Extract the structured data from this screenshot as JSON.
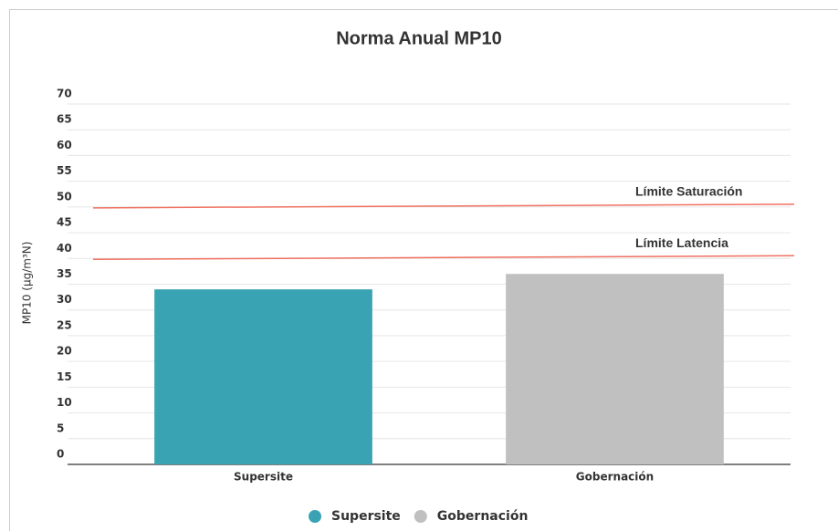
{
  "chart_data": {
    "type": "bar",
    "title": "Norma Anual MP10",
    "y_label": "MP10 (µg/m³N)",
    "categories": [
      "Supersite",
      "Gobernación"
    ],
    "series": [
      {
        "name": "Supersite",
        "color": "#3aa3b3",
        "values": [
          34,
          null
        ]
      },
      {
        "name": "Gobernación",
        "color": "#c0c0c0",
        "values": [
          null,
          37
        ]
      }
    ],
    "ylim": [
      0,
      70
    ],
    "yticks": [
      0,
      5,
      10,
      15,
      20,
      25,
      30,
      35,
      40,
      45,
      50,
      55,
      60,
      65,
      70
    ],
    "grid": true,
    "plot_lines": [
      {
        "label": "Límite Saturación",
        "value": 50,
        "color": "#f07060"
      },
      {
        "label": "Límite Latencia",
        "value": 40,
        "color": "#f07060"
      }
    ],
    "legend": "bottom"
  }
}
